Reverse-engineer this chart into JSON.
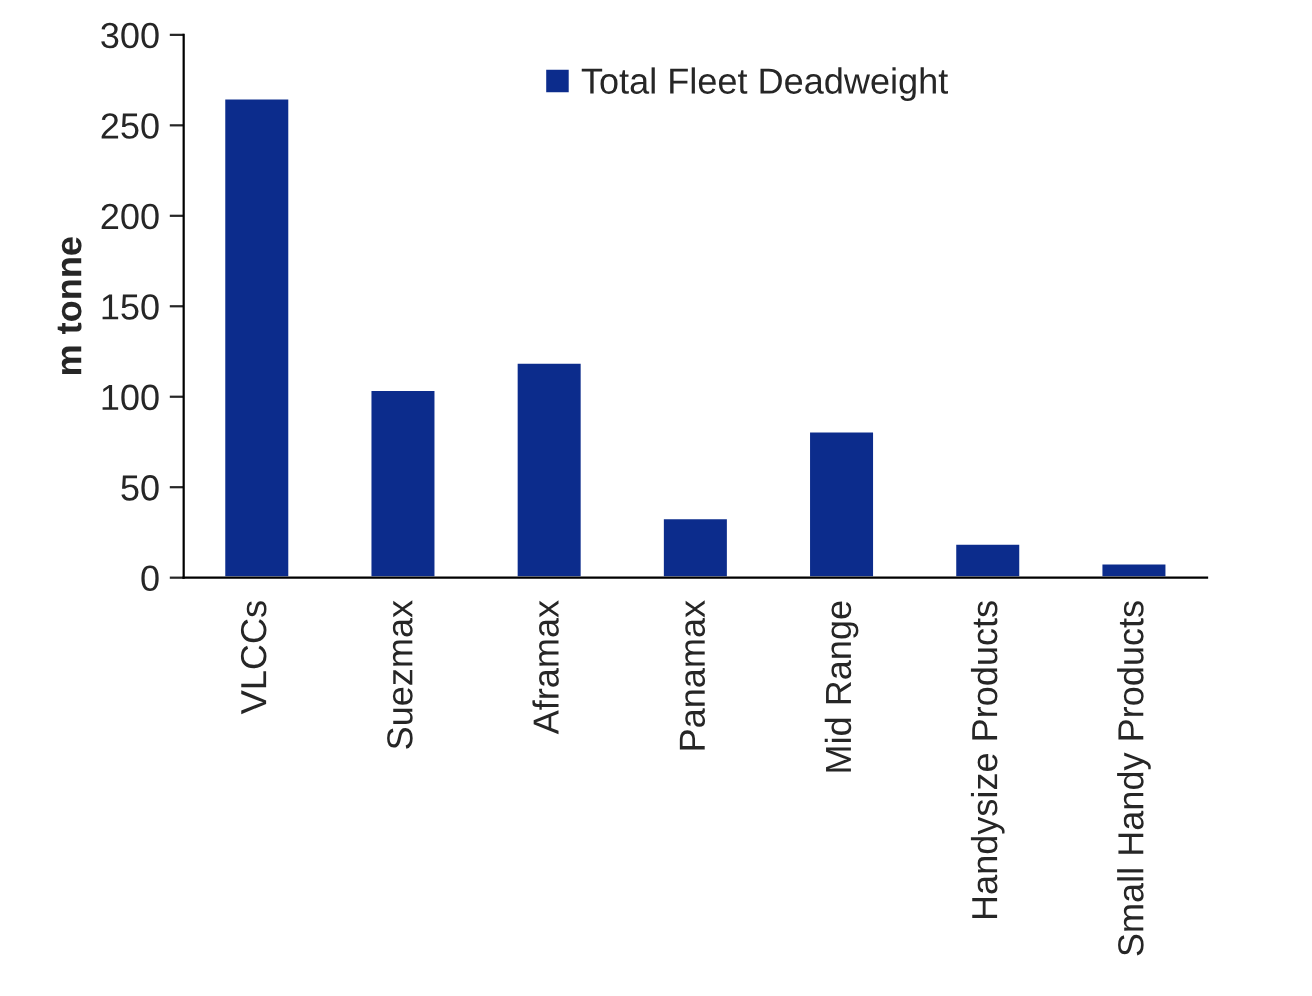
{
  "chart_data": {
    "type": "bar",
    "ylabel": "m tonne",
    "categories": [
      "VLCCs",
      "Suezmax",
      "Aframax",
      "Panamax",
      "Mid Range",
      "Handysize Products",
      "Small Handy Products"
    ],
    "series": [
      {
        "name": "Total Fleet Deadweight",
        "color": "#0c2c8c",
        "values": [
          265,
          104,
          119,
          33,
          81,
          19,
          8
        ]
      }
    ],
    "ylim": [
      0,
      300
    ],
    "yticks": [
      0,
      50,
      100,
      150,
      200,
      250,
      300
    ],
    "grid": false,
    "legend": "top"
  }
}
